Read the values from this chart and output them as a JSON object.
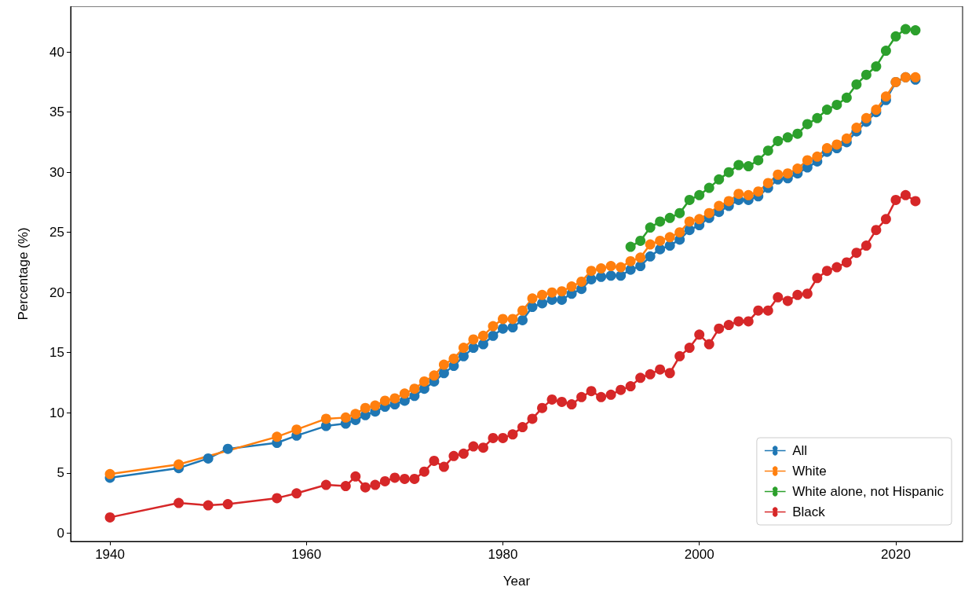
{
  "chart_data": {
    "type": "line",
    "xlabel": "Year",
    "ylabel": "Percentage (%)",
    "xlim": [
      1936,
      2026.8
    ],
    "xticks": [
      1940,
      1960,
      1980,
      2000,
      2020
    ],
    "ylim": [
      -0.7,
      43.8
    ],
    "yticks": [
      0,
      5,
      10,
      15,
      20,
      25,
      30,
      35,
      40
    ],
    "grid": false,
    "legend": "bottom right",
    "marker": "circle",
    "line_style": "solid",
    "series": [
      {
        "name": "All",
        "color": "#1f77b4",
        "x": [
          1940,
          1947,
          1950,
          1952,
          1957,
          1959,
          1962,
          1964,
          1965,
          1966,
          1967,
          1968,
          1969,
          1970,
          1971,
          1972,
          1973,
          1974,
          1975,
          1976,
          1977,
          1978,
          1979,
          1980,
          1981,
          1982,
          1983,
          1984,
          1985,
          1986,
          1987,
          1988,
          1989,
          1990,
          1991,
          1992,
          1993,
          1994,
          1995,
          1996,
          1997,
          1998,
          1999,
          2000,
          2001,
          2002,
          2003,
          2004,
          2005,
          2006,
          2007,
          2008,
          2009,
          2010,
          2011,
          2012,
          2013,
          2014,
          2015,
          2016,
          2017,
          2018,
          2019,
          2020,
          2021,
          2022
        ],
        "values": [
          4.6,
          5.4,
          6.2,
          7.0,
          7.5,
          8.1,
          8.9,
          9.1,
          9.4,
          9.8,
          10.1,
          10.5,
          10.7,
          11.0,
          11.4,
          12.0,
          12.6,
          13.3,
          13.9,
          14.7,
          15.4,
          15.7,
          16.4,
          17.0,
          17.1,
          17.7,
          18.8,
          19.1,
          19.4,
          19.4,
          19.9,
          20.3,
          21.1,
          21.3,
          21.4,
          21.4,
          21.9,
          22.2,
          23.0,
          23.6,
          23.9,
          24.4,
          25.2,
          25.6,
          26.2,
          26.7,
          27.2,
          27.7,
          27.7,
          28.0,
          28.7,
          29.4,
          29.5,
          29.9,
          30.4,
          30.9,
          31.7,
          32.0,
          32.5,
          33.4,
          34.2,
          35.0,
          36.0,
          37.5,
          37.9,
          37.7
        ]
      },
      {
        "name": "White",
        "color": "#ff7f0e",
        "x": [
          1940,
          1947,
          1957,
          1959,
          1962,
          1964,
          1965,
          1966,
          1967,
          1968,
          1969,
          1970,
          1971,
          1972,
          1973,
          1974,
          1975,
          1976,
          1977,
          1978,
          1979,
          1980,
          1981,
          1982,
          1983,
          1984,
          1985,
          1986,
          1987,
          1988,
          1989,
          1990,
          1991,
          1992,
          1993,
          1994,
          1995,
          1996,
          1997,
          1998,
          1999,
          2000,
          2001,
          2002,
          2003,
          2004,
          2005,
          2006,
          2007,
          2008,
          2009,
          2010,
          2011,
          2012,
          2013,
          2014,
          2015,
          2016,
          2017,
          2018,
          2019,
          2020,
          2021,
          2022
        ],
        "values": [
          4.9,
          5.7,
          8.0,
          8.6,
          9.5,
          9.6,
          9.9,
          10.4,
          10.6,
          11.0,
          11.2,
          11.6,
          12.0,
          12.6,
          13.1,
          14.0,
          14.5,
          15.4,
          16.1,
          16.4,
          17.2,
          17.8,
          17.8,
          18.5,
          19.5,
          19.8,
          20.0,
          20.1,
          20.5,
          20.9,
          21.8,
          22.0,
          22.2,
          22.1,
          22.6,
          22.9,
          24.0,
          24.3,
          24.6,
          25.0,
          25.9,
          26.1,
          26.6,
          27.2,
          27.6,
          28.2,
          28.1,
          28.4,
          29.1,
          29.8,
          29.9,
          30.3,
          31.0,
          31.3,
          32.0,
          32.3,
          32.8,
          33.7,
          34.5,
          35.2,
          36.3,
          37.5,
          37.9,
          37.9
        ]
      },
      {
        "name": "White alone, not Hispanic",
        "color": "#2ca02c",
        "x": [
          1993,
          1994,
          1995,
          1996,
          1997,
          1998,
          1999,
          2000,
          2001,
          2002,
          2003,
          2004,
          2005,
          2006,
          2007,
          2008,
          2009,
          2010,
          2011,
          2012,
          2013,
          2014,
          2015,
          2016,
          2017,
          2018,
          2019,
          2020,
          2021,
          2022
        ],
        "values": [
          23.8,
          24.3,
          25.4,
          25.9,
          26.2,
          26.6,
          27.7,
          28.1,
          28.7,
          29.4,
          30.0,
          30.6,
          30.5,
          31.0,
          31.8,
          32.6,
          32.9,
          33.2,
          34.0,
          34.5,
          35.2,
          35.6,
          36.2,
          37.3,
          38.1,
          38.8,
          40.1,
          41.3,
          41.9,
          41.8
        ]
      },
      {
        "name": "Black",
        "color": "#d62728",
        "x": [
          1940,
          1947,
          1950,
          1952,
          1957,
          1959,
          1962,
          1964,
          1965,
          1966,
          1967,
          1968,
          1969,
          1970,
          1971,
          1972,
          1973,
          1974,
          1975,
          1976,
          1977,
          1978,
          1979,
          1980,
          1981,
          1982,
          1983,
          1984,
          1985,
          1986,
          1987,
          1988,
          1989,
          1990,
          1991,
          1992,
          1993,
          1994,
          1995,
          1996,
          1997,
          1998,
          1999,
          2000,
          2001,
          2002,
          2003,
          2004,
          2005,
          2006,
          2007,
          2008,
          2009,
          2010,
          2011,
          2012,
          2013,
          2014,
          2015,
          2016,
          2017,
          2018,
          2019,
          2020,
          2021,
          2022
        ],
        "values": [
          1.3,
          2.5,
          2.3,
          2.4,
          2.9,
          3.3,
          4.0,
          3.9,
          4.7,
          3.8,
          4.0,
          4.3,
          4.6,
          4.5,
          4.5,
          5.1,
          6.0,
          5.5,
          6.4,
          6.6,
          7.2,
          7.1,
          7.9,
          7.9,
          8.2,
          8.8,
          9.5,
          10.4,
          11.1,
          10.9,
          10.7,
          11.3,
          11.8,
          11.3,
          11.5,
          11.9,
          12.2,
          12.9,
          13.2,
          13.6,
          13.3,
          14.7,
          15.4,
          16.5,
          15.7,
          17.0,
          17.3,
          17.6,
          17.6,
          18.5,
          18.5,
          19.6,
          19.3,
          19.8,
          19.9,
          21.2,
          21.8,
          22.1,
          22.5,
          23.3,
          23.9,
          25.2,
          26.1,
          27.7,
          28.1,
          27.6
        ]
      }
    ]
  }
}
